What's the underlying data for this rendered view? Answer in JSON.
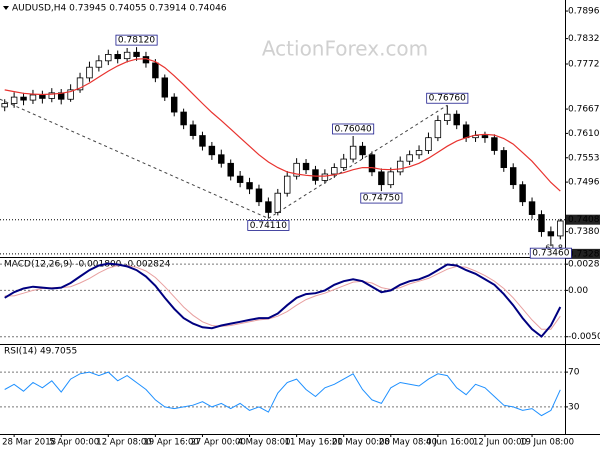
{
  "chart_data": [
    {
      "type": "candlestick",
      "title": "AUDUSD,H4  0.73945 0.74055 0.73914 0.74046",
      "watermark": "ActionForex.com",
      "categories": [
        null,
        "28 Mar 2018",
        null,
        null,
        null,
        null,
        "5 Apr 00:00",
        null,
        null,
        null,
        null,
        "12 Apr 08:00",
        null,
        null,
        null,
        null,
        "19 Apr 16:00",
        null,
        null,
        null,
        null,
        "27 Apr 00:00",
        null,
        null,
        null,
        null,
        "4 May 08:00",
        null,
        null,
        null,
        null,
        "11 May 16:00",
        null,
        null,
        null,
        null,
        "21 May 00:00",
        null,
        null,
        null,
        null,
        "28 May 08:00",
        null,
        null,
        null,
        null,
        "4 Jun 16:00",
        null,
        null,
        null,
        null,
        "12 Jun 00:00",
        null,
        null,
        null,
        null,
        "19 Jun 08:00",
        null,
        null,
        null
      ],
      "open": [
        0.7672,
        0.768,
        0.7695,
        0.7688,
        0.77,
        0.7692,
        0.7705,
        0.769,
        0.7712,
        0.774,
        0.7765,
        0.778,
        0.7795,
        0.7785,
        0.78,
        0.779,
        0.7775,
        0.774,
        0.7695,
        0.766,
        0.763,
        0.7605,
        0.758,
        0.756,
        0.754,
        0.751,
        0.7495,
        0.748,
        0.745,
        0.7425,
        0.747,
        0.751,
        0.754,
        0.7525,
        0.75,
        0.7515,
        0.753,
        0.755,
        0.758,
        0.756,
        0.752,
        0.749,
        0.752,
        0.7545,
        0.756,
        0.757,
        0.76,
        0.764,
        0.7655,
        0.763,
        0.76,
        0.7605,
        0.76,
        0.757,
        0.753,
        0.749,
        0.745,
        0.742,
        0.738,
        0.737
      ],
      "high": [
        0.769,
        0.7706,
        0.7705,
        0.7712,
        0.771,
        0.7716,
        0.7714,
        0.7725,
        0.7752,
        0.7778,
        0.7793,
        0.7806,
        0.7804,
        0.781,
        0.7812,
        0.7801,
        0.7784,
        0.7748,
        0.7704,
        0.7668,
        0.764,
        0.7614,
        0.759,
        0.7572,
        0.7549,
        0.7522,
        0.7506,
        0.749,
        0.746,
        0.748,
        0.7522,
        0.7552,
        0.755,
        0.7534,
        0.7526,
        0.754,
        0.7562,
        0.7604,
        0.759,
        0.7568,
        0.7528,
        0.753,
        0.7556,
        0.757,
        0.7582,
        0.7612,
        0.7652,
        0.7676,
        0.7664,
        0.7638,
        0.7616,
        0.7614,
        0.7608,
        0.7578,
        0.754,
        0.7498,
        0.746,
        0.743,
        0.7392,
        0.741
      ],
      "low": [
        0.7662,
        0.767,
        0.7676,
        0.7679,
        0.768,
        0.7683,
        0.7678,
        0.7684,
        0.7705,
        0.7731,
        0.7755,
        0.777,
        0.7774,
        0.7776,
        0.778,
        0.7764,
        0.773,
        0.7686,
        0.765,
        0.762,
        0.7596,
        0.757,
        0.7548,
        0.753,
        0.75,
        0.7484,
        0.7468,
        0.744,
        0.7411,
        0.7418,
        0.7462,
        0.7502,
        0.7515,
        0.749,
        0.7492,
        0.7506,
        0.7522,
        0.7542,
        0.755,
        0.751,
        0.7475,
        0.7482,
        0.7512,
        0.7536,
        0.755,
        0.7562,
        0.7592,
        0.763,
        0.762,
        0.759,
        0.759,
        0.7588,
        0.756,
        0.752,
        0.748,
        0.744,
        0.741,
        0.7368,
        0.7346,
        0.7362
      ],
      "close": [
        0.768,
        0.7695,
        0.7688,
        0.77,
        0.7692,
        0.7705,
        0.769,
        0.7712,
        0.774,
        0.7765,
        0.778,
        0.7795,
        0.7785,
        0.78,
        0.779,
        0.7775,
        0.774,
        0.7695,
        0.766,
        0.763,
        0.7605,
        0.758,
        0.756,
        0.754,
        0.751,
        0.7495,
        0.748,
        0.745,
        0.7425,
        0.747,
        0.751,
        0.754,
        0.7525,
        0.75,
        0.7515,
        0.753,
        0.755,
        0.758,
        0.756,
        0.752,
        0.749,
        0.752,
        0.7545,
        0.756,
        0.757,
        0.76,
        0.764,
        0.7655,
        0.763,
        0.76,
        0.7605,
        0.76,
        0.757,
        0.753,
        0.749,
        0.745,
        0.742,
        0.738,
        0.737,
        0.7405
      ],
      "up_color": "#ffffff",
      "down_color": "#000000",
      "wick_color": "#000000",
      "ma": {
        "color": "#e8332f",
        "values": [
          0.7712,
          0.7708,
          0.7704,
          0.7702,
          0.7701,
          0.7702,
          0.7704,
          0.7708,
          0.7716,
          0.7728,
          0.7742,
          0.7756,
          0.7768,
          0.7778,
          0.7784,
          0.7785,
          0.7778,
          0.7764,
          0.7745,
          0.7724,
          0.7702,
          0.768,
          0.7659,
          0.764,
          0.762,
          0.76,
          0.758,
          0.756,
          0.7543,
          0.753,
          0.752,
          0.7515,
          0.7512,
          0.751,
          0.751,
          0.7513,
          0.7518,
          0.7525,
          0.753,
          0.753,
          0.7526,
          0.7525,
          0.7527,
          0.7532,
          0.754,
          0.7552,
          0.7566,
          0.758,
          0.7592,
          0.76,
          0.7606,
          0.7608,
          0.7606,
          0.7598,
          0.7585,
          0.7565,
          0.7545,
          0.752,
          0.7495,
          0.7475
        ]
      },
      "ylim": [
        0.7323,
        0.7913
      ],
      "yticks": [
        0.78965,
        {
          "value": 0.7832,
          "label": "0.78320"
        },
        0.77725,
        {
          "value": 0.7667,
          "label": "0.76670"
        },
        {
          "value": 0.761,
          "label": "0.76100"
        },
        {
          "value": 0.7553,
          "label": "0.75530"
        },
        {
          "value": 0.7496,
          "label": "0.74960"
        },
        {
          "value": 0.738,
          "label": "0.73800"
        }
      ],
      "price_lines": [
        {
          "value": 0.7408,
          "label": "0.74080"
        },
        {
          "value": 0.7328,
          "label": "0.73280"
        }
      ],
      "fib_label": "61.8",
      "annotations": [
        {
          "value": 0.7812,
          "label": "0.78120"
        },
        {
          "value": 0.7411,
          "label": "0.74110"
        },
        {
          "value": 0.7604,
          "label": "0.76040"
        },
        {
          "value": 0.7475,
          "label": "0.74750"
        },
        {
          "value": 0.7676,
          "label": "0.76760"
        },
        {
          "value": 0.7346,
          "label": "0.73460"
        }
      ]
    },
    {
      "type": "macd",
      "title": "MACD(12,26,9) -0.001800 -0.002824",
      "series": [
        {
          "color": "#000080",
          "values": [
            -0.0008,
            -0.0002,
            0.0002,
            0.0004,
            0.0003,
            0.0002,
            0.0003,
            0.0008,
            0.0015,
            0.0022,
            0.0027,
            0.0029,
            0.0028,
            0.0026,
            0.0022,
            0.0015,
            0.0005,
            -0.0008,
            -0.002,
            -0.003,
            -0.0036,
            -0.004,
            -0.0041,
            -0.0038,
            -0.0036,
            -0.0034,
            -0.0032,
            -0.003,
            -0.003,
            -0.0025,
            -0.0016,
            -0.0008,
            -0.0004,
            -0.0003,
            0,
            0.0006,
            0.001,
            0.0012,
            0.001,
            0.0004,
            -0.0002,
            0,
            0.0006,
            0.001,
            0.0012,
            0.0016,
            0.0022,
            0.0028,
            0.0027,
            0.0022,
            0.0018,
            0.0012,
            0.0006,
            -0.0004,
            -0.0016,
            -0.003,
            -0.0042,
            -0.005,
            -0.0038,
            -0.0018
          ]
        },
        {
          "color": "#e8a0a0",
          "values": [
            -0.0006,
            -0.0006,
            -0.0003,
            0,
            0.0002,
            0.0003,
            0.0003,
            0.0004,
            0.0008,
            0.0013,
            0.0019,
            0.0024,
            0.0027,
            0.0027,
            0.0025,
            0.0021,
            0.0014,
            0.0004,
            -0.0007,
            -0.0018,
            -0.0027,
            -0.0034,
            -0.0038,
            -0.0039,
            -0.0038,
            -0.0036,
            -0.0034,
            -0.0032,
            -0.0031,
            -0.0028,
            -0.0023,
            -0.0016,
            -0.001,
            -0.0006,
            -0.0003,
            0.0001,
            0.0005,
            0.0009,
            0.001,
            0.0008,
            0.0003,
            0.0001,
            0.0003,
            0.0007,
            0.001,
            0.0013,
            0.0018,
            0.0023,
            0.0026,
            0.0025,
            0.0021,
            0.0016,
            0.001,
            0.0002,
            -0.0008,
            -0.002,
            -0.0032,
            -0.0042,
            -0.0042,
            -0.0028
          ]
        }
      ],
      "ylim": [
        -0.0057,
        0.0034
      ],
      "yticks": [
        0.002839,
        {
          "value": 0,
          "label": "0.00"
        },
        -0.005021
      ]
    },
    {
      "type": "line",
      "title": "RSI(14) 49.7055",
      "color": "#1e90ff",
      "values": [
        50,
        56,
        48,
        58,
        52,
        60,
        47,
        62,
        68,
        70,
        66,
        70,
        60,
        66,
        58,
        50,
        38,
        30,
        28,
        30,
        32,
        36,
        30,
        34,
        28,
        34,
        26,
        30,
        24,
        46,
        58,
        62,
        50,
        42,
        52,
        56,
        62,
        68,
        50,
        38,
        34,
        52,
        58,
        56,
        54,
        62,
        68,
        66,
        52,
        44,
        56,
        52,
        42,
        32,
        30,
        26,
        28,
        20,
        26,
        49.7
      ],
      "ylim": [
        0,
        100
      ],
      "yticks": [
        70,
        30
      ]
    }
  ]
}
